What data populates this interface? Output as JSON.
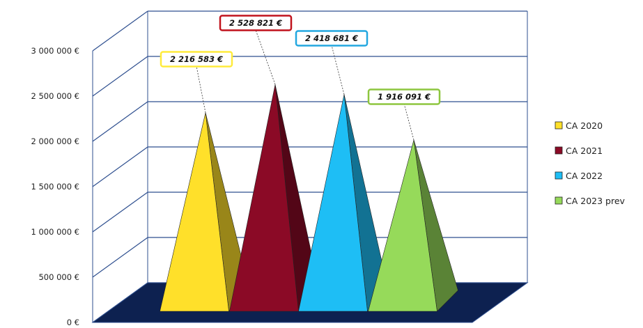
{
  "chart_data": {
    "type": "bar",
    "shape": "3d-pyramid",
    "categories": [
      "CA 2020",
      "CA 2021",
      "CA 2022",
      "CA 2023 prev"
    ],
    "values": [
      2216583,
      2528821,
      2418681,
      1916091
    ],
    "data_labels": [
      "2 216 583 €",
      "2 528 821 €",
      "2 418 681 €",
      "1 916 091 €"
    ],
    "series_colors": [
      "#FFE02A",
      "#8B0A26",
      "#1EBEF5",
      "#96DA5A"
    ],
    "label_border_colors": [
      "#FFEB3B",
      "#C0121C",
      "#22A7E0",
      "#8DC63F"
    ],
    "y_ticks": [
      "0 €",
      "500 000 €",
      "1 000 000 €",
      "1 500 000 €",
      "2 000 000 €",
      "2 500 000 €",
      "3 000 000 €"
    ],
    "ylim": [
      0,
      3000000
    ],
    "grid": true,
    "gridline_color": "#2E4F8F",
    "floor_color": "#0D2150",
    "legend": {
      "position": "right",
      "entries": [
        "CA 2020",
        "CA 2021",
        "CA 2022",
        "CA 2023 prev"
      ]
    },
    "title": "",
    "xlabel": "",
    "ylabel": ""
  }
}
